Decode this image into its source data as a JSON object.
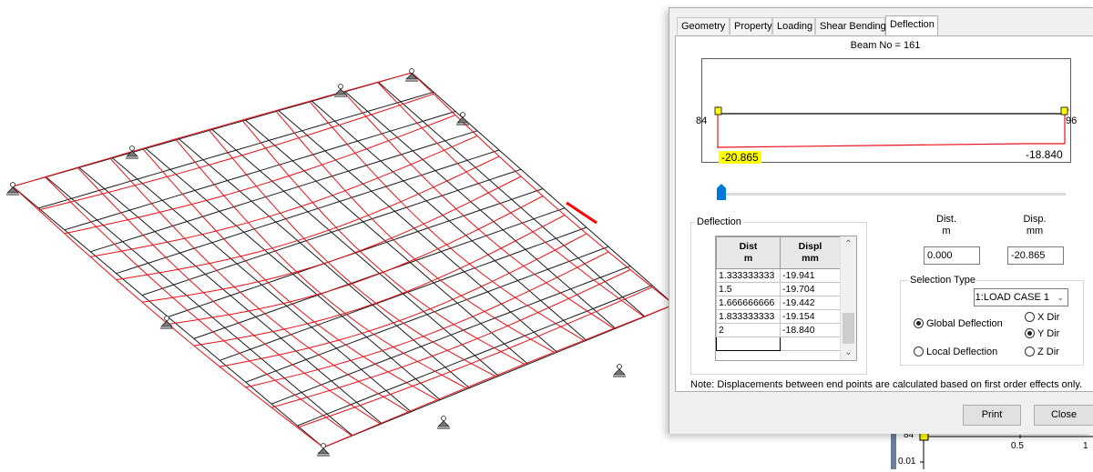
{
  "dialog": {
    "tabs": [
      "Geometry",
      "Property",
      "Loading",
      "Shear Bending",
      "Deflection"
    ],
    "active_tab": "Deflection",
    "beam_title": "Beam No = 161",
    "diagram": {
      "start_node": "84",
      "end_node": "96",
      "start_value": "-20.865",
      "end_value": "-18.840"
    },
    "deflection_group": {
      "label": "Deflection",
      "col1_header": "Dist",
      "col1_unit": "m",
      "col2_header": "Displ",
      "col2_unit": "mm",
      "rows": [
        [
          "1.333333333",
          "-19.941"
        ],
        [
          "1.5",
          "-19.704"
        ],
        [
          "1.666666666",
          "-19.442"
        ],
        [
          "1.833333333",
          "-19.154"
        ],
        [
          "2",
          "-18.840"
        ]
      ]
    },
    "readout": {
      "dist_label": "Dist.",
      "dist_unit": "m",
      "disp_label": "Disp.",
      "disp_unit": "mm",
      "dist_value": "0.000",
      "disp_value": "-20.865"
    },
    "selection_type": {
      "label": "Selection Type",
      "load_case": "1:LOAD CASE 1",
      "global_deflection": "Global Deflection",
      "local_deflection": "Local Deflection",
      "x_dir": "X Dir",
      "y_dir": "Y Dir",
      "z_dir": "Z Dir",
      "selected_mode": "Global Deflection",
      "selected_dir": "Y Dir"
    },
    "note": "Note: Displacements between end points are calculated based on first order effects only.",
    "buttons": {
      "print": "Print",
      "close": "Close"
    }
  },
  "behind_window": {
    "node_label": "84",
    "tick_05": "0.5",
    "tick_1": "1",
    "y_tick": "0.01"
  },
  "colors": {
    "mesh": "#1a1a1a",
    "deflected_shape": "#e8101a",
    "highlight": "#ffff00",
    "selected_member": "#ff0000"
  }
}
